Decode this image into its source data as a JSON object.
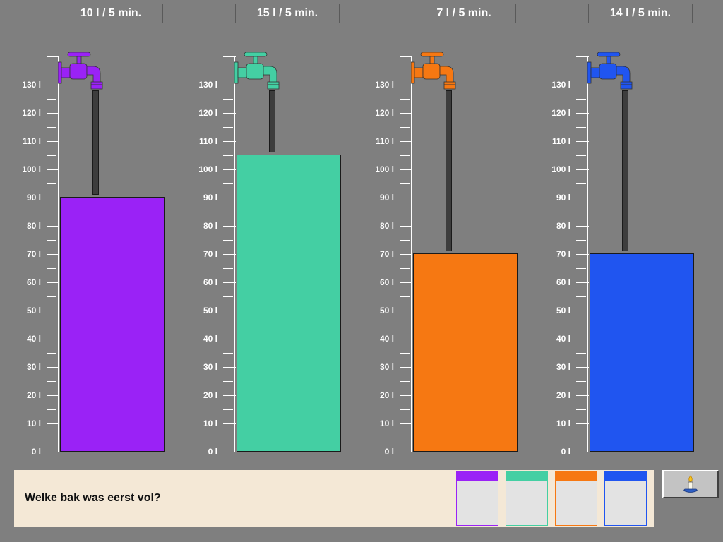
{
  "tanks": [
    {
      "rate_label": "10 l / 5 min.",
      "level_l": 90,
      "color": "#9a22f6"
    },
    {
      "rate_label": "15 l / 5 min.",
      "level_l": 105,
      "color": "#44cfa3"
    },
    {
      "rate_label": "7 l / 5 min.",
      "level_l": 70,
      "color": "#f67812"
    },
    {
      "rate_label": "14 l / 5 min.",
      "level_l": 70,
      "color": "#2055f0"
    }
  ],
  "scale": {
    "labels": [
      "0 l",
      "10 l",
      "20 l",
      "30 l",
      "40 l",
      "50 l",
      "60 l",
      "70 l",
      "80 l",
      "90 l",
      "100 l",
      "110 l",
      "120 l",
      "130 l"
    ],
    "max_l": 130
  },
  "question": "Welke bak was eerst vol?",
  "answer_choices": [
    {
      "color": "#9a22f6"
    },
    {
      "color": "#44cfa3"
    },
    {
      "color": "#f67812"
    },
    {
      "color": "#2055f0"
    }
  ],
  "help_button": {
    "icon": "candle-icon"
  }
}
